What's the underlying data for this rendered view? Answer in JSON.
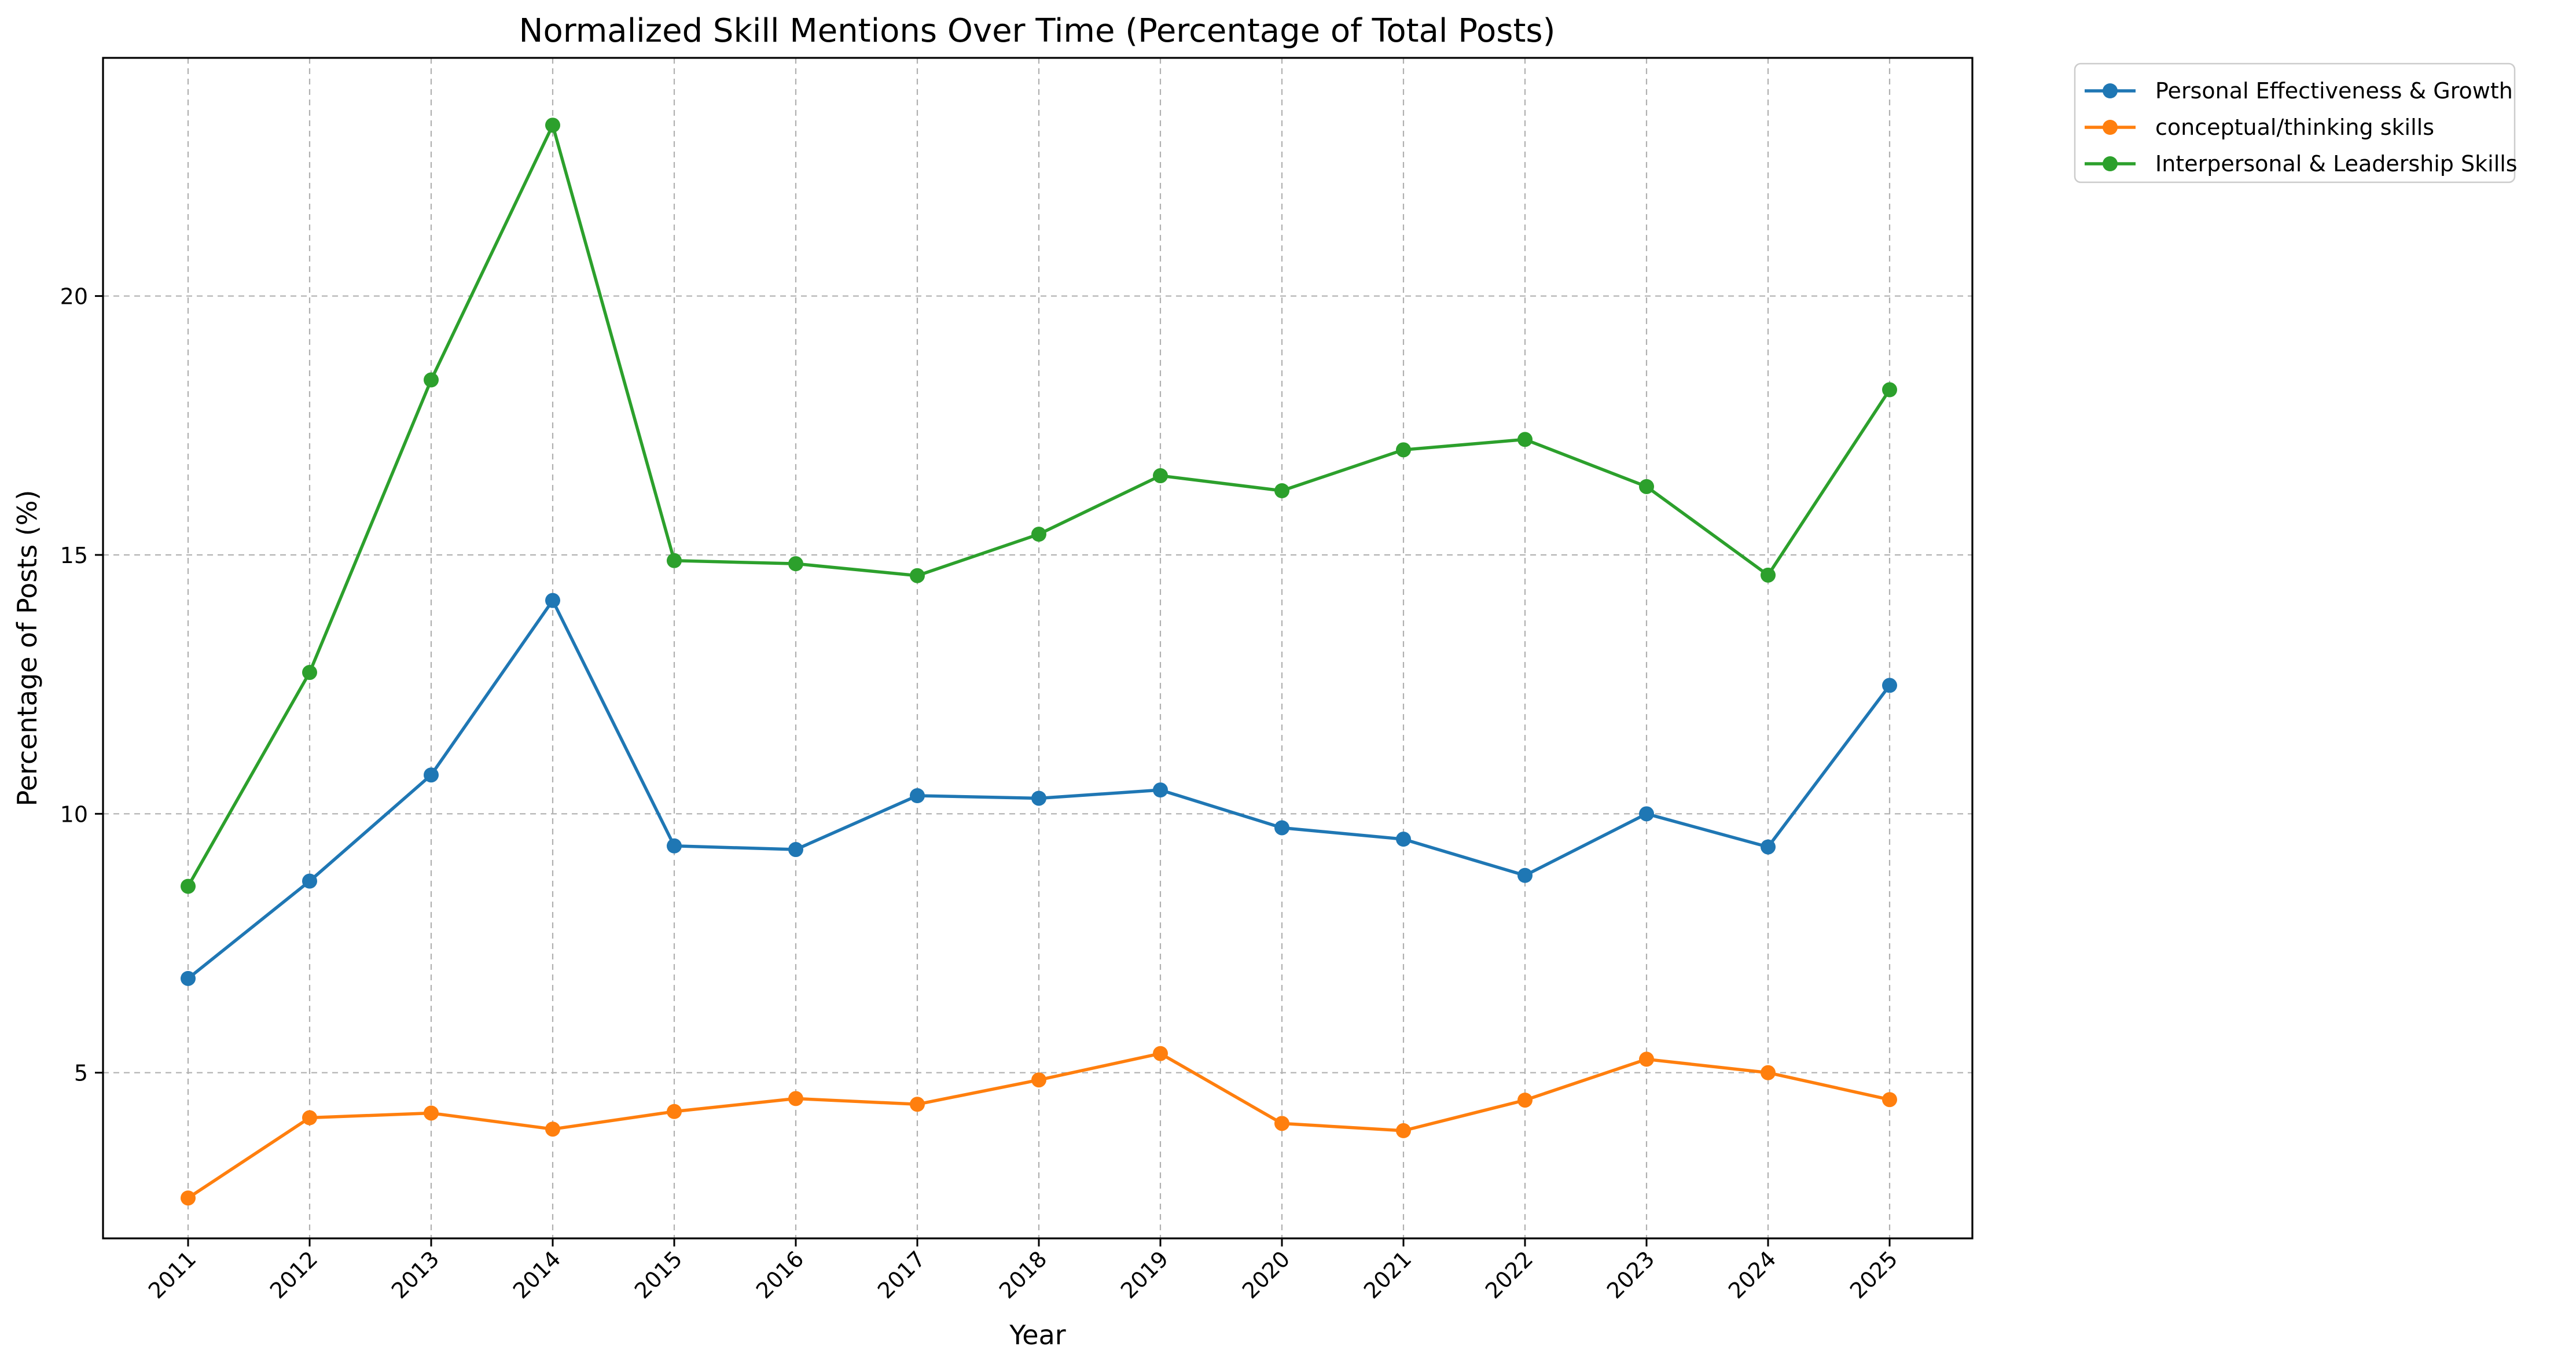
{
  "chart_data": {
    "type": "line",
    "title": "Normalized Skill Mentions Over Time (Percentage of Total Posts)",
    "xlabel": "Year",
    "ylabel": "Percentage of Posts (%)",
    "x": [
      "2011",
      "2012",
      "2013",
      "2014",
      "2015",
      "2016",
      "2017",
      "2018",
      "2019",
      "2020",
      "2021",
      "2022",
      "2023",
      "2024",
      "2025"
    ],
    "ylim": [
      1.8,
      24.6
    ],
    "yticks": [
      5,
      10,
      15,
      20
    ],
    "grid": true,
    "legend_position": "outside top-right",
    "series": [
      {
        "name": "Personal Effectiveness & Growth",
        "color": "#1f77b4",
        "values": [
          6.82,
          8.7,
          10.75,
          14.12,
          9.38,
          9.31,
          10.35,
          10.3,
          10.46,
          9.73,
          9.51,
          8.81,
          10.0,
          9.36,
          12.48
        ]
      },
      {
        "name": "conceptual/thinking skills",
        "color": "#ff7f0e",
        "values": [
          2.58,
          4.13,
          4.22,
          3.91,
          4.25,
          4.5,
          4.39,
          4.86,
          5.37,
          4.02,
          3.88,
          4.47,
          5.26,
          5.0,
          4.48
        ]
      },
      {
        "name": "Interpersonal & Leadership Skills",
        "color": "#2ca02c",
        "values": [
          8.6,
          12.73,
          18.38,
          23.3,
          14.89,
          14.83,
          14.6,
          15.4,
          16.53,
          16.24,
          17.03,
          17.23,
          16.32,
          14.61,
          18.19
        ]
      }
    ]
  }
}
